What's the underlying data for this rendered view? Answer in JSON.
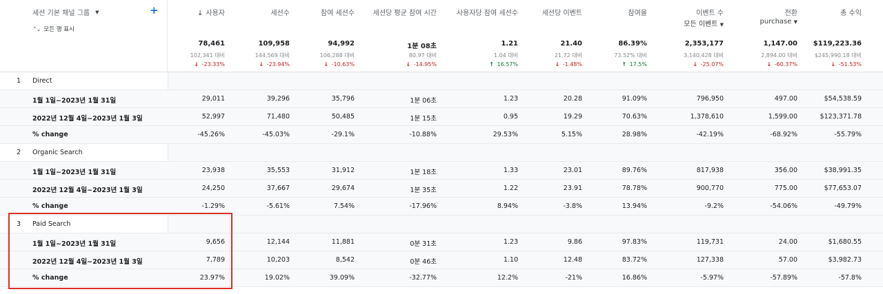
{
  "dimension": {
    "title": "세션 기본 채널 그룹",
    "show_all": "모든 행 표시"
  },
  "metrics": [
    {
      "name": "사용자",
      "sort": "↓",
      "total": "78,461",
      "compare": "102,341 대비",
      "change": "-23.33%",
      "dir": "down"
    },
    {
      "name": "세션수",
      "total": "109,958",
      "compare": "144,569 대비",
      "change": "-23.94%",
      "dir": "down"
    },
    {
      "name": "참여 세션수",
      "total": "94,992",
      "compare": "106,288 대비",
      "change": "-10.63%",
      "dir": "down"
    },
    {
      "name": "세션당 평균 참여 시간",
      "total": "1분 08초",
      "compare": "80.97 대비",
      "change": "-14.95%",
      "dir": "down"
    },
    {
      "name": "사용자당 참여 세션수",
      "total": "1.21",
      "compare": "1.04 대비",
      "change": "16.57%",
      "dir": "up"
    },
    {
      "name": "세션당 이벤트",
      "total": "21.40",
      "compare": "21.72 대비",
      "change": "-1.48%",
      "dir": "down"
    },
    {
      "name": "참여율",
      "total": "86.39%",
      "compare": "73.52% 대비",
      "change": "17.5%",
      "dir": "up"
    },
    {
      "name": "이벤트 수",
      "sub": "모든 이벤트",
      "total": "2,353,177",
      "compare": "3,140,428 대비",
      "change": "-25.07%",
      "dir": "down"
    },
    {
      "name": "전환",
      "sub": "purchase",
      "total": "1,147.00",
      "compare": "2,894.00 대비",
      "change": "-60.37%",
      "dir": "down"
    },
    {
      "name": "총 수익",
      "total": "$119,223.36",
      "compare": "$245,990.18 대비",
      "change": "-51.53%",
      "dir": "down"
    }
  ],
  "rows": [
    {
      "type": "group",
      "index": "1",
      "label": "Direct"
    },
    {
      "type": "data",
      "label": "1월 1일~2023년 1월 31일",
      "values": [
        "29,011",
        "39,296",
        "35,796",
        "1분 06초",
        "1.23",
        "20.28",
        "91.09%",
        "796,950",
        "497.00",
        "$54,538.59"
      ]
    },
    {
      "type": "data",
      "label": "2022년 12월 4일~2023년 1월 3일",
      "values": [
        "52,997",
        "71,480",
        "50,485",
        "1분 15초",
        "0.95",
        "19.29",
        "70.63%",
        "1,378,610",
        "1,599.00",
        "$123,371.78"
      ]
    },
    {
      "type": "data",
      "label": "% change",
      "values": [
        "-45.26%",
        "-45.03%",
        "-29.1%",
        "-10.88%",
        "29.53%",
        "5.15%",
        "28.98%",
        "-42.19%",
        "-68.92%",
        "-55.79%"
      ]
    },
    {
      "type": "group",
      "index": "2",
      "label": "Organic Search"
    },
    {
      "type": "data",
      "label": "1월 1일~2023년 1월 31일",
      "values": [
        "23,938",
        "35,553",
        "31,912",
        "1분 18초",
        "1.33",
        "23.01",
        "89.76%",
        "817,938",
        "356.00",
        "$38,991.35"
      ]
    },
    {
      "type": "data",
      "label": "2022년 12월 4일~2023년 1월 3일",
      "values": [
        "24,250",
        "37,667",
        "29,674",
        "1분 35초",
        "1.22",
        "23.91",
        "78.78%",
        "900,770",
        "775.00",
        "$77,653.07"
      ]
    },
    {
      "type": "data",
      "label": "% change",
      "values": [
        "-1.29%",
        "-5.61%",
        "7.54%",
        "-17.96%",
        "8.94%",
        "-3.8%",
        "13.94%",
        "-9.2%",
        "-54.06%",
        "-49.79%"
      ]
    },
    {
      "type": "group",
      "index": "3",
      "label": "Paid Search"
    },
    {
      "type": "data",
      "label": "1월 1일~2023년 1월 31일",
      "values": [
        "9,656",
        "12,144",
        "11,881",
        "0분 31초",
        "1.23",
        "9.86",
        "97.83%",
        "119,731",
        "24.00",
        "$1,680.55"
      ]
    },
    {
      "type": "data",
      "label": "2022년 12월 4일~2023년 1월 3일",
      "values": [
        "7,789",
        "10,203",
        "8,542",
        "0분 46초",
        "1.10",
        "12.48",
        "83.72%",
        "127,338",
        "57.00",
        "$3,982.73"
      ]
    },
    {
      "type": "data",
      "label": "% change",
      "values": [
        "23.97%",
        "19.02%",
        "39.09%",
        "-32.77%",
        "12.2%",
        "-21%",
        "16.86%",
        "-5.97%",
        "-57.89%",
        "-57.8%"
      ]
    }
  ],
  "colors": {
    "down": "#c5221f",
    "up": "#137333",
    "accent": "#1a73e8",
    "highlight": "#d93025"
  }
}
